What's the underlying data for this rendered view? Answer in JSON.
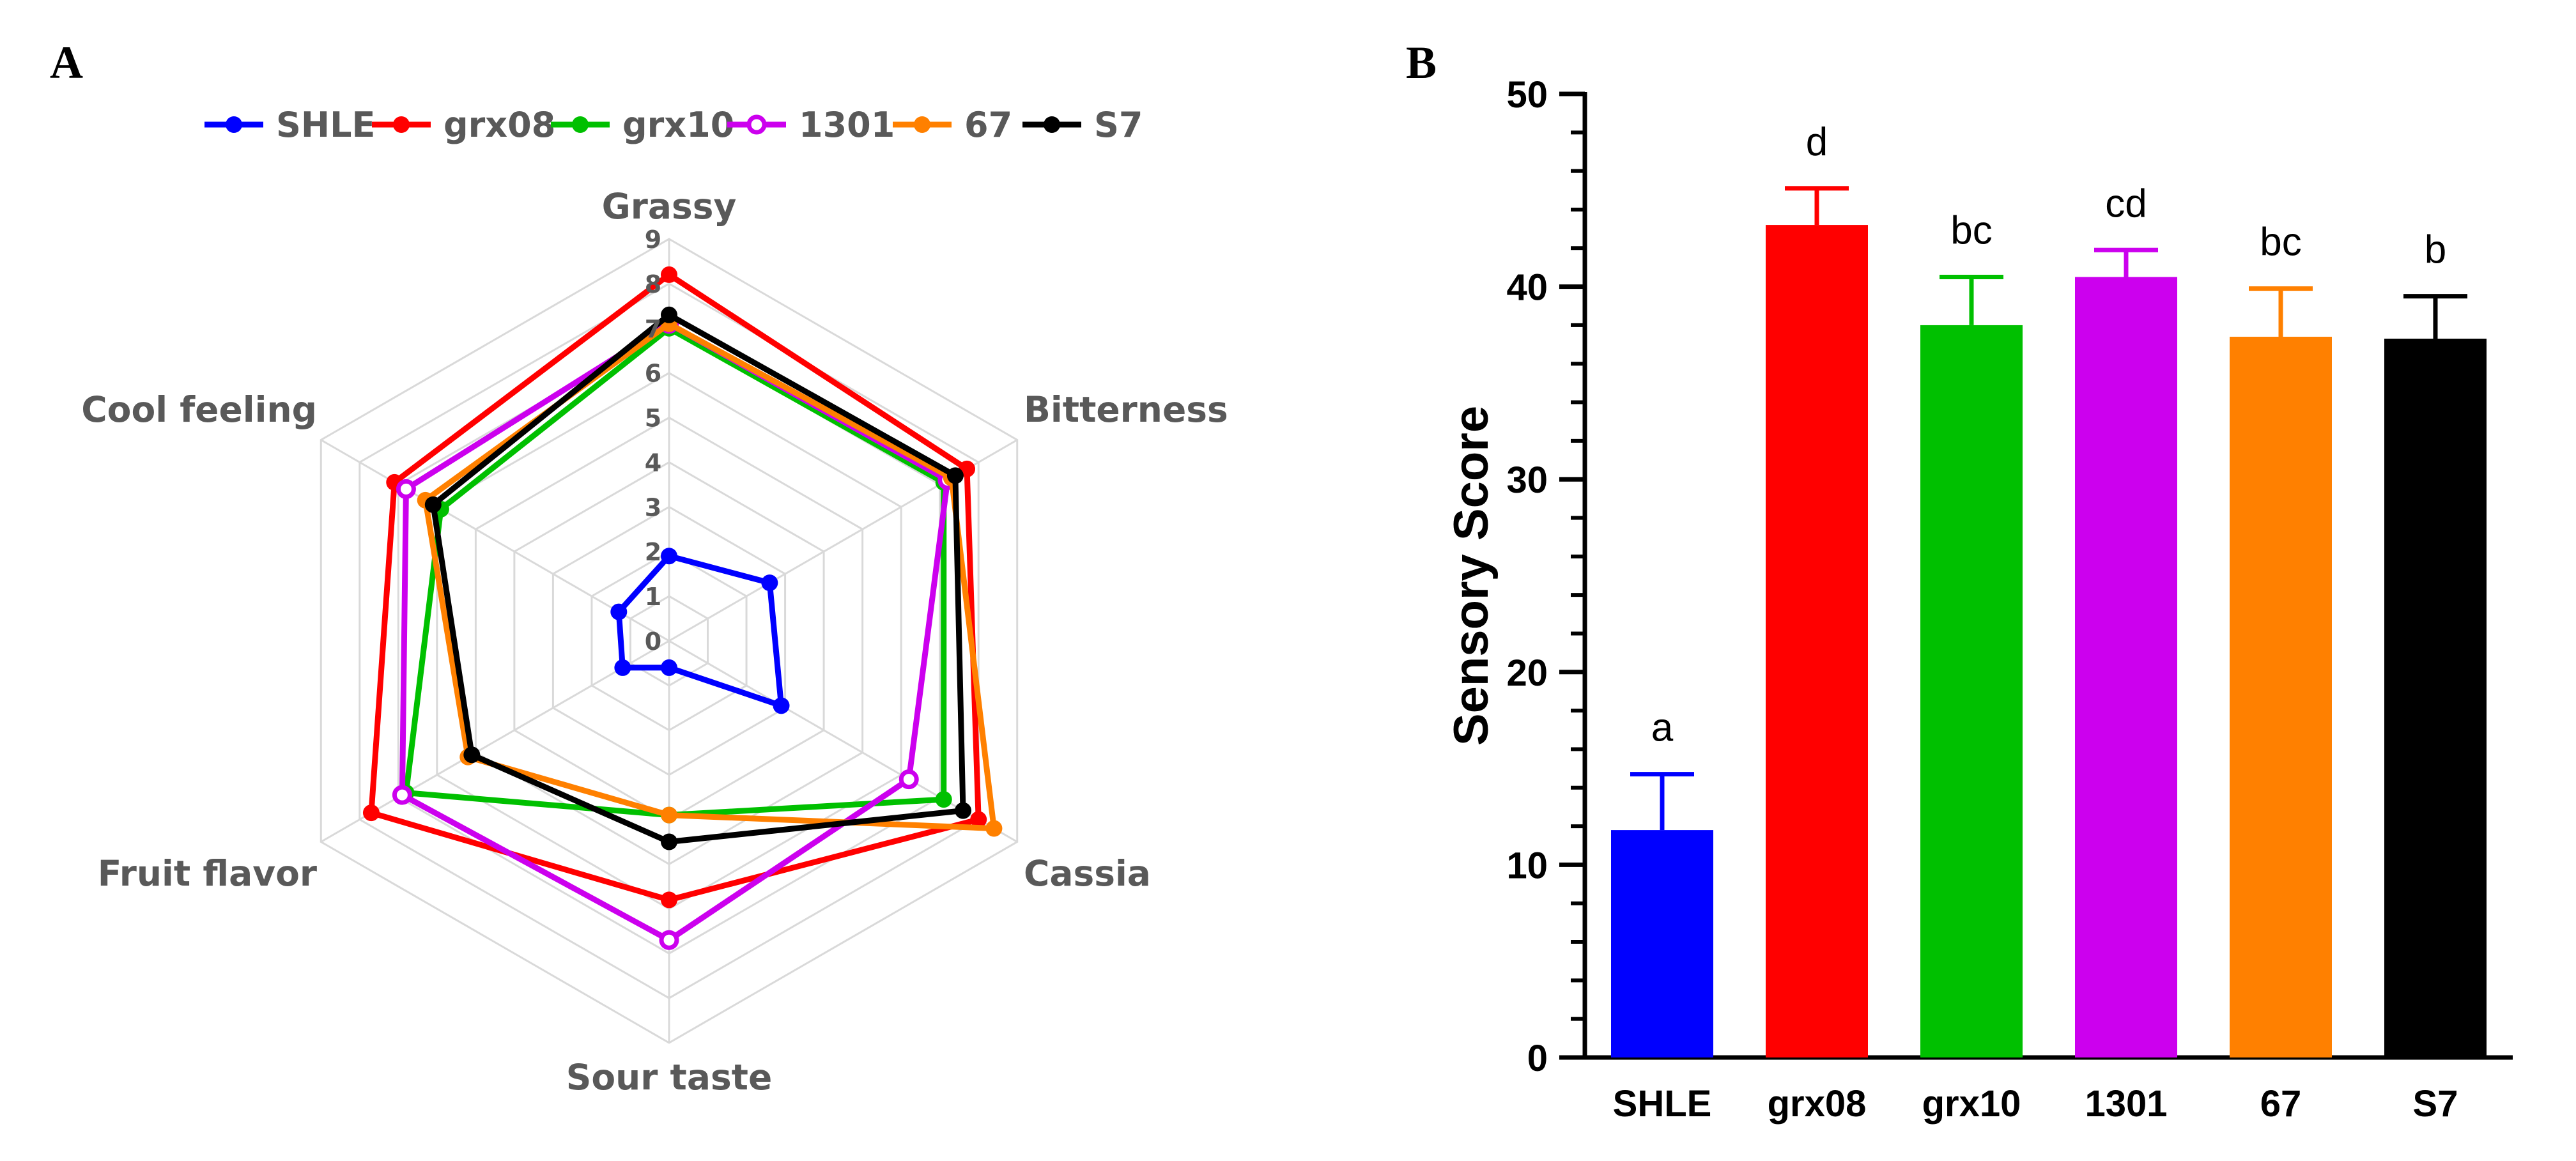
{
  "panels": {
    "a": "A",
    "b": "B"
  },
  "colors": {
    "SHLE": "#0000ff",
    "grx08": "#ff0000",
    "grx10": "#00c000",
    "1301": "#cc00ee",
    "67": "#ff8000",
    "S7": "#000000",
    "grid": "#d9d9d9",
    "text_grey": "#595959"
  },
  "chart_data": [
    {
      "type": "radar",
      "panel": "A",
      "axes": [
        "Grassy",
        "Bitterness",
        "Cassia",
        "Sour taste",
        "Fruit flavor",
        "Cool feeling"
      ],
      "scale": {
        "min": 0,
        "max": 9,
        "ticks": [
          "0",
          "1",
          "2",
          "3",
          "4",
          "5",
          "6",
          "7",
          "8",
          "9"
        ]
      },
      "legend_position": "top",
      "series": [
        {
          "name": "SHLE",
          "values": [
            1.9,
            2.6,
            2.9,
            0.6,
            1.2,
            1.3
          ],
          "marker": "circle"
        },
        {
          "name": "grx08",
          "values": [
            8.2,
            7.7,
            8.0,
            5.8,
            7.7,
            7.1
          ],
          "marker": "circle"
        },
        {
          "name": "grx10",
          "values": [
            7.0,
            7.1,
            7.1,
            3.9,
            6.8,
            5.9
          ],
          "marker": "circle"
        },
        {
          "name": "1301",
          "values": [
            7.1,
            7.2,
            6.2,
            6.7,
            6.9,
            6.8
          ],
          "marker": "circle-hollow"
        },
        {
          "name": "67",
          "values": [
            7.1,
            7.3,
            8.4,
            3.9,
            5.2,
            6.3
          ],
          "marker": "circle"
        },
        {
          "name": "S7",
          "values": [
            7.3,
            7.4,
            7.6,
            4.5,
            5.1,
            6.1
          ],
          "marker": "circle"
        }
      ]
    },
    {
      "type": "bar",
      "panel": "B",
      "categories": [
        "SHLE",
        "grx08",
        "grx10",
        "1301",
        "67",
        "S7"
      ],
      "values": [
        11.8,
        43.2,
        38.0,
        40.5,
        37.4,
        37.3
      ],
      "errors": [
        2.9,
        1.9,
        2.5,
        1.4,
        2.5,
        2.2
      ],
      "significance": [
        "a",
        "d",
        "bc",
        "cd",
        "bc",
        "b"
      ],
      "ylabel": "Sensory Score",
      "xlabel": "",
      "ylim": [
        0,
        50
      ],
      "yticks": [
        "0",
        "10",
        "20",
        "30",
        "40",
        "50"
      ],
      "grid": false
    }
  ]
}
